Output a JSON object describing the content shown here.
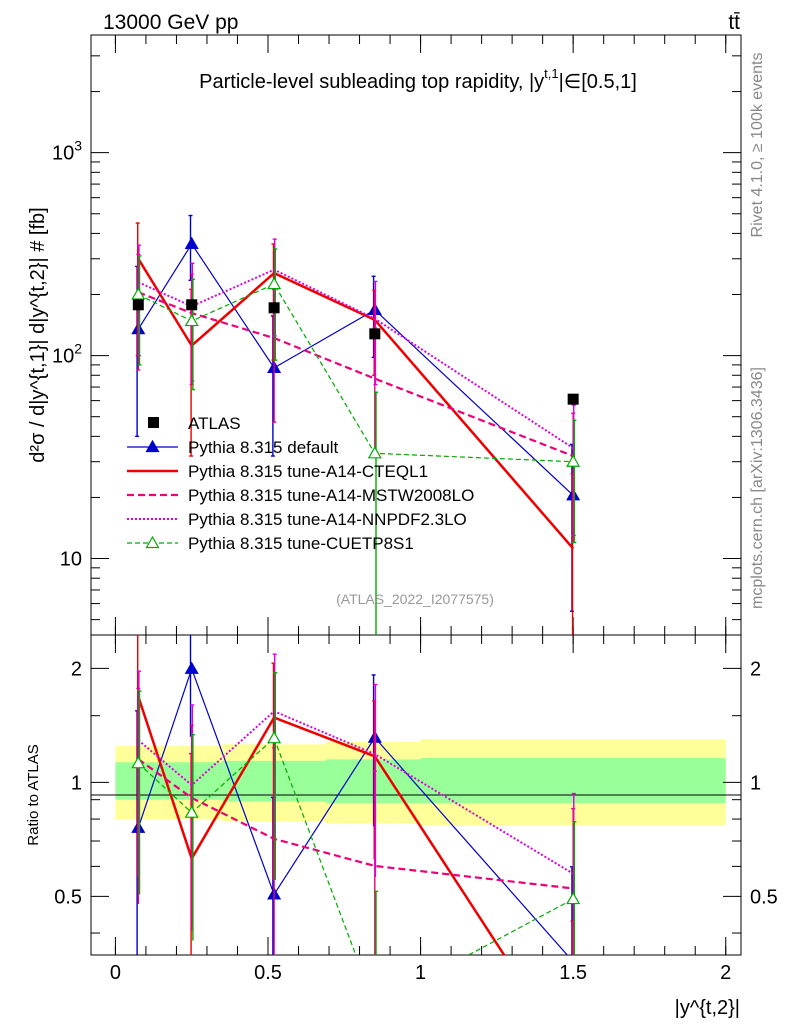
{
  "header": {
    "energy_label": "13000 GeV pp",
    "process_label": "tt̄"
  },
  "side_labels": {
    "rivet": "Rivet 4.1.0, ≥ 100k events",
    "mcplots": "mcplots.cern.ch [arXiv:1306.3436]"
  },
  "chart_data": {
    "type": "line",
    "title": "Particle-level subleading top rapidity, |y^{t,1}|∈[0.5,1]",
    "title_text": "Particle-level subleading top rapidity, |y",
    "title_sup": "t,1",
    "title_suffix": "|∈[0.5,1]",
    "analysis_label": "(ATLAS_2022_I2077575)",
    "xlabel": "|y^{t,2}|",
    "ylabel": "d²σ / d|y^{t,1}| d|y^{t,2}| # [fb]",
    "ylabel_ratio": "Ratio to ATLAS",
    "x_range": [
      -0.08,
      2.05
    ],
    "main_y_range": [
      4.2,
      3800
    ],
    "main_y_scale": "log",
    "ratio_y_range": [
      0.35,
      2.45
    ],
    "ratio_y_scale": "log",
    "x_ticks": [
      0,
      0.5,
      1,
      1.5,
      2
    ],
    "x_tick_labels": [
      "0",
      "0.5",
      "1",
      "1.5",
      "2"
    ],
    "main_y_ticks": [
      10,
      100,
      1000
    ],
    "main_y_tick_labels": [
      "10",
      "10²",
      "10³"
    ],
    "ratio_y_ticks": [
      0.5,
      1,
      2
    ],
    "ratio_y_tick_labels": [
      "0.5",
      "1",
      "2"
    ],
    "x": [
      0.075,
      0.25,
      0.52,
      0.85,
      1.5
    ],
    "bin_edges": [
      0,
      0.15,
      0.35,
      0.69,
      1.0,
      2.0
    ],
    "data": {
      "name": "ATLAS",
      "values": [
        178,
        178,
        172,
        128,
        61
      ],
      "band_inner": [
        [
          0.9,
          1.13
        ],
        [
          0.9,
          1.13
        ],
        [
          0.89,
          1.14
        ],
        [
          0.88,
          1.15
        ],
        [
          0.88,
          1.16
        ]
      ],
      "band_outer": [
        [
          0.8,
          1.25
        ],
        [
          0.8,
          1.25
        ],
        [
          0.79,
          1.26
        ],
        [
          0.78,
          1.28
        ],
        [
          0.77,
          1.3
        ]
      ]
    },
    "series": [
      {
        "name": "Pythia 8.315 default",
        "color": "#0000cc",
        "dash": "",
        "width": 1.2,
        "marker": "triangle-filled",
        "values": [
          135,
          355,
          87,
          168,
          20.5
        ],
        "err_lo": [
          95,
          120,
          55,
          70,
          15
        ],
        "err_hi": [
          140,
          135,
          70,
          78,
          16
        ]
      },
      {
        "name": "Pythia 8.315 tune-A14-CTEQL1",
        "color": "#ee0000",
        "dash": "",
        "width": 2.5,
        "marker": "none",
        "values": [
          300,
          112,
          255,
          150,
          11.2
        ],
        "err_lo": [
          200,
          80,
          160,
          70,
          9
        ],
        "err_hi": [
          150,
          100,
          100,
          60,
          15
        ]
      },
      {
        "name": "Pythia 8.315 tune-A14-MSTW2008LO",
        "color": "#ee0077",
        "dash": "7,4",
        "width": 2.2,
        "marker": "none",
        "values": [
          205,
          162,
          122,
          77,
          32
        ],
        "err_lo": [
          120,
          90,
          75,
          45,
          20
        ],
        "err_hi": [
          110,
          90,
          90,
          60,
          20
        ]
      },
      {
        "name": "Pythia 8.315 tune-A14-NNPDF2.3LO",
        "color": "#dd00dd",
        "dash": "2,2",
        "width": 2,
        "marker": "none",
        "values": [
          230,
          175,
          265,
          152,
          35
        ],
        "err_lo": [
          130,
          100,
          140,
          80,
          22
        ],
        "err_hi": [
          120,
          110,
          110,
          80,
          22
        ]
      },
      {
        "name": "Pythia 8.315 tune-CUETP8S1",
        "color": "#00aa00",
        "dash": "5,3",
        "width": 1.2,
        "marker": "triangle-open",
        "values": [
          200,
          148,
          225,
          33,
          30
        ],
        "err_lo": [
          110,
          80,
          130,
          33,
          18
        ],
        "err_hi": [
          110,
          90,
          110,
          33,
          18
        ]
      }
    ]
  }
}
